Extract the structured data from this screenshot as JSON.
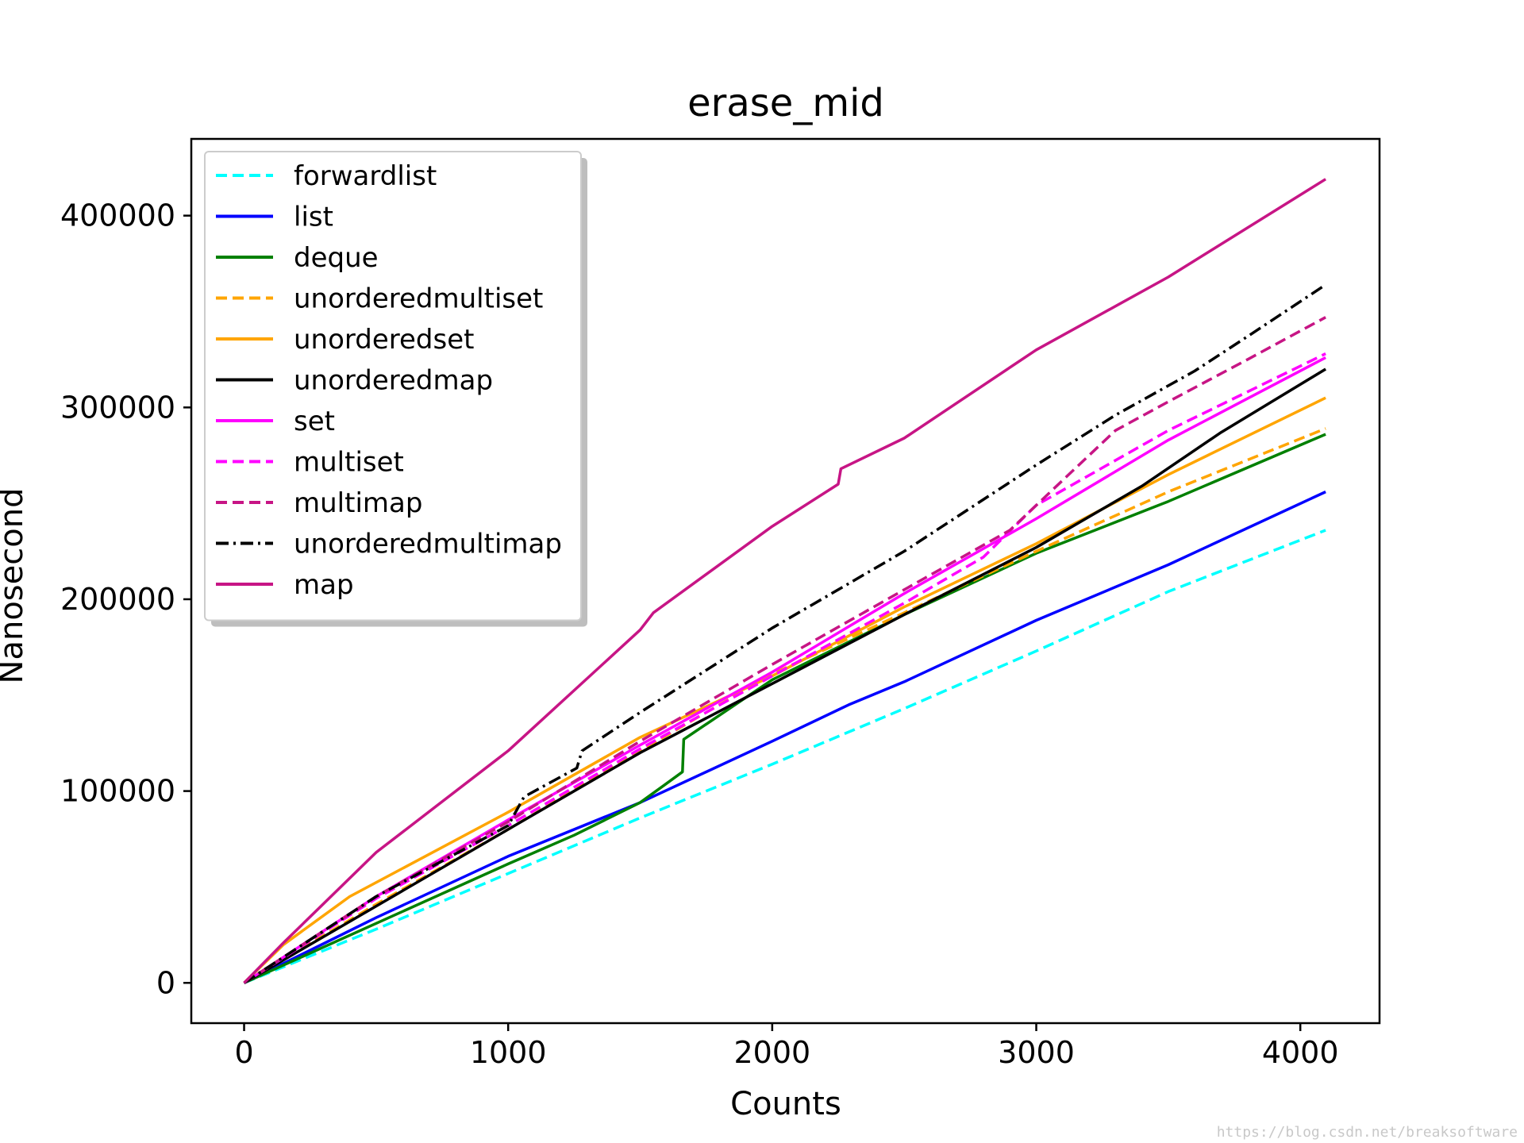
{
  "chart_data": {
    "type": "line",
    "title": "erase_mid",
    "xlabel": "Counts",
    "ylabel": "Nanosecond",
    "xlim": [
      -200,
      4300
    ],
    "ylim": [
      -21000,
      440000
    ],
    "xticks": [
      0,
      1000,
      2000,
      3000,
      4000
    ],
    "xtick_labels": [
      "0",
      "1000",
      "2000",
      "3000",
      "4000"
    ],
    "yticks": [
      0,
      100000,
      200000,
      300000,
      400000
    ],
    "ytick_labels": [
      "0",
      "100000",
      "200000",
      "300000",
      "400000"
    ],
    "grid": false,
    "legend_position": "upper-left",
    "series": [
      {
        "name": "forwardlist",
        "color": "#00ffff",
        "style": "dashed",
        "points": [
          [
            0,
            0
          ],
          [
            500,
            28000
          ],
          [
            1000,
            57000
          ],
          [
            1500,
            86000
          ],
          [
            2000,
            114000
          ],
          [
            2500,
            143000
          ],
          [
            3000,
            173000
          ],
          [
            3500,
            204000
          ],
          [
            4096,
            236000
          ]
        ]
      },
      {
        "name": "list",
        "color": "#0000ff",
        "style": "solid",
        "points": [
          [
            0,
            0
          ],
          [
            500,
            34000
          ],
          [
            1000,
            66000
          ],
          [
            1500,
            94000
          ],
          [
            2000,
            126000
          ],
          [
            2290,
            145000
          ],
          [
            2500,
            157000
          ],
          [
            3000,
            189000
          ],
          [
            3500,
            218000
          ],
          [
            4096,
            256000
          ]
        ]
      },
      {
        "name": "deque",
        "color": "#008000",
        "style": "solid",
        "points": [
          [
            0,
            0
          ],
          [
            500,
            31000
          ],
          [
            1000,
            62000
          ],
          [
            1250,
            77000
          ],
          [
            1500,
            94000
          ],
          [
            1590,
            103000
          ],
          [
            1660,
            110000
          ],
          [
            1665,
            127000
          ],
          [
            2000,
            158000
          ],
          [
            2500,
            192000
          ],
          [
            3000,
            224000
          ],
          [
            3500,
            251000
          ],
          [
            4096,
            286000
          ]
        ]
      },
      {
        "name": "unorderedmultiset",
        "color": "#ffa500",
        "style": "dashed",
        "points": [
          [
            0,
            0
          ],
          [
            500,
            41000
          ],
          [
            1000,
            80000
          ],
          [
            1500,
            121000
          ],
          [
            2000,
            161000
          ],
          [
            2500,
            193000
          ],
          [
            3000,
            225000
          ],
          [
            3500,
            256000
          ],
          [
            4096,
            289000
          ]
        ]
      },
      {
        "name": "unorderedset",
        "color": "#ffa500",
        "style": "solid",
        "points": [
          [
            0,
            0
          ],
          [
            150,
            20000
          ],
          [
            400,
            45000
          ],
          [
            1000,
            89000
          ],
          [
            1500,
            128000
          ],
          [
            2000,
            160000
          ],
          [
            2500,
            196000
          ],
          [
            3000,
            229000
          ],
          [
            3500,
            265000
          ],
          [
            4096,
            305000
          ]
        ]
      },
      {
        "name": "unorderedmap",
        "color": "#000000",
        "style": "solid",
        "points": [
          [
            0,
            0
          ],
          [
            500,
            40000
          ],
          [
            1000,
            80000
          ],
          [
            1500,
            120000
          ],
          [
            2000,
            156000
          ],
          [
            2500,
            192000
          ],
          [
            3000,
            227000
          ],
          [
            3400,
            259000
          ],
          [
            3700,
            287000
          ],
          [
            4096,
            320000
          ]
        ]
      },
      {
        "name": "set",
        "color": "#ff00ff",
        "style": "solid",
        "points": [
          [
            0,
            0
          ],
          [
            500,
            45000
          ],
          [
            1000,
            85000
          ],
          [
            1500,
            124000
          ],
          [
            2000,
            162000
          ],
          [
            2500,
            203000
          ],
          [
            3000,
            242000
          ],
          [
            3500,
            283000
          ],
          [
            4096,
            326000
          ]
        ]
      },
      {
        "name": "multiset",
        "color": "#ff00ff",
        "style": "dashed",
        "points": [
          [
            0,
            0
          ],
          [
            500,
            44000
          ],
          [
            1000,
            82000
          ],
          [
            1500,
            122000
          ],
          [
            2000,
            160000
          ],
          [
            2500,
            198000
          ],
          [
            2800,
            222000
          ],
          [
            3000,
            249000
          ],
          [
            3500,
            288000
          ],
          [
            4096,
            328000
          ]
        ]
      },
      {
        "name": "multimap",
        "color": "#c71585",
        "style": "dashed",
        "points": [
          [
            0,
            0
          ],
          [
            500,
            45000
          ],
          [
            1000,
            84000
          ],
          [
            1500,
            126000
          ],
          [
            2000,
            166000
          ],
          [
            2500,
            205000
          ],
          [
            2900,
            236000
          ],
          [
            3100,
            262000
          ],
          [
            3300,
            288000
          ],
          [
            3500,
            303000
          ],
          [
            3800,
            325000
          ],
          [
            4096,
            347000
          ]
        ]
      },
      {
        "name": "unorderedmultimap",
        "color": "#000000",
        "style": "dashdot",
        "points": [
          [
            0,
            0
          ],
          [
            500,
            45000
          ],
          [
            1000,
            82000
          ],
          [
            1060,
            97000
          ],
          [
            1260,
            112000
          ],
          [
            1280,
            121000
          ],
          [
            1500,
            141000
          ],
          [
            2000,
            185000
          ],
          [
            2500,
            225000
          ],
          [
            3000,
            270000
          ],
          [
            3300,
            296000
          ],
          [
            3600,
            319000
          ],
          [
            3800,
            337000
          ],
          [
            4096,
            364000
          ]
        ]
      },
      {
        "name": "map",
        "color": "#c71585",
        "style": "solid",
        "points": [
          [
            0,
            0
          ],
          [
            150,
            21000
          ],
          [
            500,
            68000
          ],
          [
            1000,
            121000
          ],
          [
            1500,
            184000
          ],
          [
            1550,
            193000
          ],
          [
            2000,
            238000
          ],
          [
            2250,
            260000
          ],
          [
            2260,
            268000
          ],
          [
            2500,
            284000
          ],
          [
            3000,
            330000
          ],
          [
            3500,
            368000
          ],
          [
            4096,
            419000
          ]
        ]
      }
    ]
  },
  "watermark": "https://blog.csdn.net/breaksoftware"
}
